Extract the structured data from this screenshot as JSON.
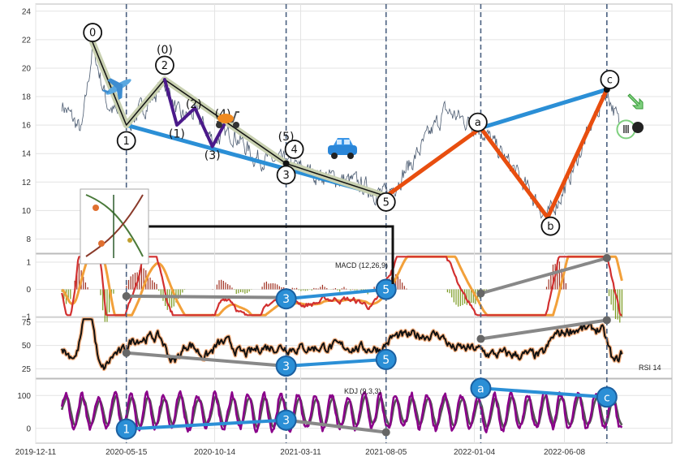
{
  "chart_data": [
    {
      "type": "line",
      "panel": "price",
      "ylim": [
        7,
        24.5
      ],
      "yticks": [
        8,
        10,
        12,
        14,
        16,
        18,
        20,
        22,
        24
      ],
      "ytick_labels": [
        "8",
        "10",
        "12",
        "14",
        "16",
        "18",
        "20",
        "22",
        "24"
      ],
      "x_date_range": [
        "2019-12-11",
        "2022-12-10"
      ],
      "xtick_labels": [
        "2019-12-11",
        "2020-05-15",
        "2020-10-14",
        "2021-03-11",
        "2021-08-05",
        "2022-01-04",
        "2022-06-08"
      ],
      "xtick_dates": [
        "2019-12-11",
        "2020-05-15",
        "2020-10-14",
        "2021-03-11",
        "2021-08-05",
        "2022-01-04",
        "2022-06-08"
      ],
      "vertical_dashed_dates": [
        "2020-05-15",
        "2021-02-14",
        "2021-08-05",
        "2022-01-15",
        "2022-08-20"
      ],
      "price_anchors": [
        {
          "date": "2020-01-25",
          "y": 17.5
        },
        {
          "date": "2020-02-28",
          "y": 15.5
        },
        {
          "date": "2020-03-18",
          "y": 21.5
        },
        {
          "date": "2020-04-12",
          "y": 17.5
        },
        {
          "date": "2020-05-15",
          "y": 16.0
        },
        {
          "date": "2020-06-20",
          "y": 17.5
        },
        {
          "date": "2020-07-20",
          "y": 19.0
        },
        {
          "date": "2020-08-15",
          "y": 16.5
        },
        {
          "date": "2020-09-10",
          "y": 16.8
        },
        {
          "date": "2020-10-10",
          "y": 15.0
        },
        {
          "date": "2020-11-15",
          "y": 15.5
        },
        {
          "date": "2020-12-20",
          "y": 13.8
        },
        {
          "date": "2021-02-14",
          "y": 13.3
        },
        {
          "date": "2021-04-10",
          "y": 12.5
        },
        {
          "date": "2021-06-10",
          "y": 12.0
        },
        {
          "date": "2021-08-05",
          "y": 11.0
        },
        {
          "date": "2021-09-20",
          "y": 13.5
        },
        {
          "date": "2021-11-15",
          "y": 17.0
        },
        {
          "date": "2022-01-15",
          "y": 15.8
        },
        {
          "date": "2022-03-10",
          "y": 13.0
        },
        {
          "date": "2022-05-10",
          "y": 9.5
        },
        {
          "date": "2022-06-08",
          "y": 11.5
        },
        {
          "date": "2022-08-20",
          "y": 18.5
        },
        {
          "date": "2022-09-10",
          "y": 16.0
        }
      ],
      "wave_lines": [
        {
          "color": "#2b8fd6",
          "points": [
            [
              "2020-05-15",
              16.0
            ],
            [
              "2021-08-05",
              11.0
            ]
          ]
        },
        {
          "color": "#2b8fd6",
          "points": [
            [
              "2022-01-15",
              15.8
            ],
            [
              "2022-08-20",
              18.5
            ]
          ]
        },
        {
          "color": "#e84e0f",
          "points": [
            [
              "2021-08-05",
              11.0
            ],
            [
              "2022-01-15",
              15.8
            ],
            [
              "2022-05-10",
              9.5
            ],
            [
              "2022-08-20",
              18.5
            ]
          ]
        },
        {
          "color": "#c8d0b0",
          "points": [
            [
              "2020-03-18",
              21.8
            ],
            [
              "2020-05-15",
              16.0
            ],
            [
              "2020-07-20",
              19.2
            ],
            [
              "2021-02-14",
              13.3
            ],
            [
              "2021-08-05",
              11.0
            ]
          ]
        },
        {
          "color": "#111111",
          "points": [
            [
              "2020-03-18",
              21.8
            ],
            [
              "2020-05-15",
              16.0
            ],
            [
              "2020-07-20",
              19.2
            ],
            [
              "2021-02-14",
              13.3
            ],
            [
              "2021-08-05",
              11.0
            ]
          ]
        },
        {
          "color": "#4b1a8a",
          "points": [
            [
              "2020-07-20",
              19.2
            ],
            [
              "2020-08-10",
              16.0
            ],
            [
              "2020-09-10",
              17.2
            ],
            [
              "2020-10-10",
              14.5
            ],
            [
              "2020-10-30",
              16.0
            ]
          ]
        }
      ],
      "wave_labels": [
        {
          "text": "0",
          "date": "2020-03-18",
          "y": 22.5,
          "circled": true
        },
        {
          "text": "1",
          "date": "2020-05-15",
          "y": 14.9,
          "circled": true
        },
        {
          "text": "2",
          "date": "2020-07-20",
          "y": 20.2,
          "circled": true
        },
        {
          "text": "3",
          "date": "2021-02-14",
          "y": 12.5,
          "circled": true
        },
        {
          "text": "4",
          "date": "2021-02-28",
          "y": 14.3,
          "circled": true
        },
        {
          "text": "5",
          "date": "2021-08-05",
          "y": 10.6,
          "circled": true
        },
        {
          "text": "a",
          "date": "2022-01-10",
          "y": 16.2,
          "circled": true
        },
        {
          "text": "b",
          "date": "2022-05-15",
          "y": 8.9,
          "circled": true
        },
        {
          "text": "c",
          "date": "2022-08-25",
          "y": 19.2,
          "circled": true
        },
        {
          "text": "(0)",
          "date": "2020-07-20",
          "y": 21.3,
          "circled": false
        },
        {
          "text": "(1)",
          "date": "2020-08-10",
          "y": 15.4,
          "circled": false
        },
        {
          "text": "(2)",
          "date": "2020-09-08",
          "y": 17.5,
          "circled": false
        },
        {
          "text": "(3)",
          "date": "2020-10-10",
          "y": 13.9,
          "circled": false
        },
        {
          "text": "(4)",
          "date": "2020-10-28",
          "y": 16.8,
          "circled": false
        },
        {
          "text": "(5)",
          "date": "2021-02-14",
          "y": 15.2,
          "circled": false
        },
        {
          "text": "Ⅲ",
          "date": "2022-09-22",
          "y": 15.7,
          "circled": true
        }
      ]
    },
    {
      "type": "line",
      "panel": "macd",
      "title": "MACD (12,26,9)",
      "ylim": [
        -1,
        1.3
      ],
      "yticks": [
        -1,
        0,
        1
      ],
      "ytick_labels": [
        "−1",
        "0",
        "1"
      ],
      "divergence_lines": [
        {
          "color": "#888888",
          "points": [
            [
              "2020-05-15",
              -0.25
            ],
            [
              "2021-02-14",
              -0.3
            ]
          ]
        },
        {
          "color": "#2b8fd6",
          "points": [
            [
              "2021-02-14",
              -0.35
            ],
            [
              "2021-08-05",
              0.0
            ]
          ]
        },
        {
          "color": "#888888",
          "points": [
            [
              "2022-01-15",
              -0.15
            ],
            [
              "2022-08-20",
              1.15
            ]
          ]
        }
      ],
      "markers": [
        {
          "text": "3",
          "date": "2021-02-14",
          "y": -0.35
        },
        {
          "text": "5",
          "date": "2021-08-05",
          "y": 0.0
        }
      ]
    },
    {
      "type": "line",
      "panel": "rsi",
      "title": "RSI 14",
      "ylim": [
        15,
        80
      ],
      "yticks": [
        25,
        50,
        75
      ],
      "ytick_labels": [
        "25",
        "50",
        "75"
      ],
      "divergence_lines": [
        {
          "color": "#888888",
          "points": [
            [
              "2020-05-15",
              42
            ],
            [
              "2021-02-14",
              28
            ]
          ]
        },
        {
          "color": "#2b8fd6",
          "points": [
            [
              "2021-02-14",
              28
            ],
            [
              "2021-08-05",
              35
            ]
          ]
        },
        {
          "color": "#888888",
          "points": [
            [
              "2022-01-15",
              57
            ],
            [
              "2022-08-20",
              77
            ]
          ]
        }
      ],
      "markers": [
        {
          "text": "3",
          "date": "2021-02-14",
          "y": 28
        },
        {
          "text": "5",
          "date": "2021-08-05",
          "y": 35
        }
      ]
    },
    {
      "type": "line",
      "panel": "kdj",
      "title": "KDJ (9,3,3)",
      "ylim": [
        -45,
        150
      ],
      "yticks": [
        0,
        100
      ],
      "ytick_labels": [
        "0",
        "100"
      ],
      "divergence_lines": [
        {
          "color": "#2b8fd6",
          "points": [
            [
              "2020-05-15",
              -2
            ],
            [
              "2021-02-14",
              25
            ]
          ]
        },
        {
          "color": "#888888",
          "points": [
            [
              "2021-02-14",
              25
            ],
            [
              "2021-08-05",
              -12
            ]
          ]
        },
        {
          "color": "#2b8fd6",
          "points": [
            [
              "2022-01-15",
              122
            ],
            [
              "2022-08-20",
              95
            ]
          ]
        }
      ],
      "markers": [
        {
          "text": "1",
          "date": "2020-05-15",
          "y": -2
        },
        {
          "text": "3",
          "date": "2021-02-14",
          "y": 25
        },
        {
          "text": "a",
          "date": "2022-01-15",
          "y": 122
        },
        {
          "text": "c",
          "date": "2022-08-20",
          "y": 95
        }
      ]
    }
  ],
  "colors": {
    "price_line": "#4a5a70",
    "grid": "#e3e3e3",
    "dash": "#4a6080",
    "macd": "#d23030",
    "signal": "#f2a03a",
    "hist_pos": "#a03020",
    "hist_neg": "#7a9a20",
    "rsi": "#111111",
    "rsi_halo": "#f4b080",
    "kdj_k": "#8a008a",
    "kdj_d": "#555555"
  },
  "icons": [
    "airplane-icon",
    "scooter-icon",
    "car-icon",
    "thumbnail-image",
    "green-arrow-icon"
  ]
}
